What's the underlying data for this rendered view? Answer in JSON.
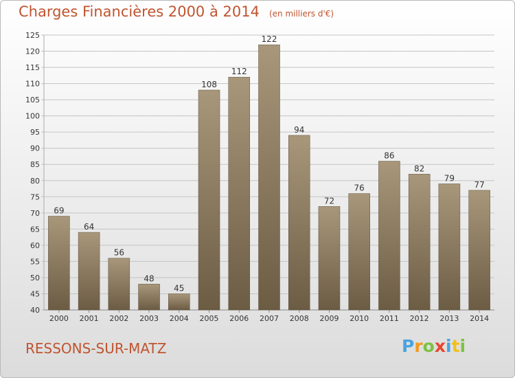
{
  "chart_data": {
    "type": "bar",
    "title": "Charges Financières 2000 à 2014",
    "subtitle": "(en milliers d'€)",
    "xlabel": "",
    "ylabel": "",
    "categories": [
      "2000",
      "2001",
      "2002",
      "2003",
      "2004",
      "2005",
      "2006",
      "2007",
      "2008",
      "2009",
      "2010",
      "2011",
      "2012",
      "2013",
      "2014"
    ],
    "values": [
      69,
      64,
      56,
      48,
      45,
      108,
      112,
      122,
      94,
      72,
      76,
      86,
      82,
      79,
      77
    ],
    "ylim": [
      40,
      125
    ],
    "yticks": [
      40,
      45,
      50,
      55,
      60,
      65,
      70,
      75,
      80,
      85,
      90,
      95,
      100,
      105,
      110,
      115,
      120,
      125
    ],
    "grid": true,
    "bar_color": "#8b7a5e"
  },
  "footer": {
    "place": "RESSONS-SUR-MATZ",
    "logo_letters": [
      "P",
      "r",
      "o",
      "x",
      "i",
      "t",
      "i"
    ]
  },
  "colors": {
    "text_accent": "#c0542f",
    "logo": [
      "#4aa3df",
      "#f29a1f",
      "#7cc242",
      "#e8452c",
      "#4aa3df",
      "#f2c01f",
      "#7cc242"
    ]
  }
}
